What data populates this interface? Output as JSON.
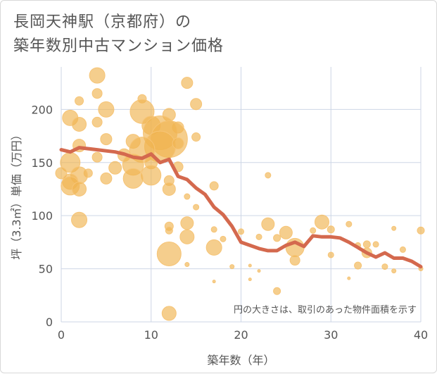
{
  "header": {
    "title_line1": "長岡天神駅（京都府）の",
    "title_line2": "築年数別中古マンション価格"
  },
  "colors": {
    "bubble_fill": "#f0b450",
    "bubble_stroke": "#f6c476",
    "trend_line": "#d4694e",
    "grid": "#cdd6e6"
  },
  "chart_data": {
    "type": "scatter",
    "xlabel": "築年数（年）",
    "ylabel": "坪（3.3㎡）単価（万円）",
    "xlim": [
      0,
      40
    ],
    "ylim": [
      0,
      240
    ],
    "x_ticks": [
      0,
      10,
      20,
      30,
      40
    ],
    "y_ticks": [
      0,
      50,
      100,
      150,
      200
    ],
    "grid": true,
    "note": "円の大きさは、取引のあった物件面積を示す",
    "bubbles": [
      {
        "x": 4,
        "y": 232,
        "s": 11
      },
      {
        "x": 14,
        "y": 225,
        "s": 8
      },
      {
        "x": 4,
        "y": 215,
        "s": 7
      },
      {
        "x": 2,
        "y": 208,
        "s": 6
      },
      {
        "x": 9,
        "y": 210,
        "s": 6
      },
      {
        "x": 15,
        "y": 205,
        "s": 8
      },
      {
        "x": 5,
        "y": 200,
        "s": 11
      },
      {
        "x": 9,
        "y": 198,
        "s": 17
      },
      {
        "x": 12,
        "y": 195,
        "s": 9
      },
      {
        "x": 1,
        "y": 192,
        "s": 11
      },
      {
        "x": 2,
        "y": 186,
        "s": 10
      },
      {
        "x": 4,
        "y": 188,
        "s": 7
      },
      {
        "x": 10,
        "y": 185,
        "s": 13
      },
      {
        "x": 13,
        "y": 183,
        "s": 8
      },
      {
        "x": 11,
        "y": 178,
        "s": 24
      },
      {
        "x": 12,
        "y": 172,
        "s": 26
      },
      {
        "x": 11,
        "y": 165,
        "s": 22
      },
      {
        "x": 8,
        "y": 170,
        "s": 10
      },
      {
        "x": 5,
        "y": 172,
        "s": 8
      },
      {
        "x": 13,
        "y": 168,
        "s": 8
      },
      {
        "x": 15,
        "y": 174,
        "s": 6
      },
      {
        "x": 2,
        "y": 166,
        "s": 9
      },
      {
        "x": 9,
        "y": 162,
        "s": 18
      },
      {
        "x": 7,
        "y": 157,
        "s": 9
      },
      {
        "x": 4,
        "y": 155,
        "s": 7
      },
      {
        "x": 1,
        "y": 150,
        "s": 14
      },
      {
        "x": 8,
        "y": 148,
        "s": 15
      },
      {
        "x": 10,
        "y": 150,
        "s": 9
      },
      {
        "x": 6,
        "y": 145,
        "s": 9
      },
      {
        "x": 13,
        "y": 146,
        "s": 7
      },
      {
        "x": 0,
        "y": 140,
        "s": 8
      },
      {
        "x": 3,
        "y": 140,
        "s": 6
      },
      {
        "x": 2,
        "y": 138,
        "s": 12
      },
      {
        "x": 10,
        "y": 138,
        "s": 14
      },
      {
        "x": 8,
        "y": 135,
        "s": 14
      },
      {
        "x": 5,
        "y": 135,
        "s": 8
      },
      {
        "x": 1,
        "y": 132,
        "s": 11
      },
      {
        "x": 12,
        "y": 133,
        "s": 7
      },
      {
        "x": 23,
        "y": 138,
        "s": 4
      },
      {
        "x": 1,
        "y": 128,
        "s": 13
      },
      {
        "x": 2,
        "y": 125,
        "s": 10
      },
      {
        "x": 12,
        "y": 125,
        "s": 9
      },
      {
        "x": 17,
        "y": 128,
        "s": 6
      },
      {
        "x": 14,
        "y": 118,
        "s": 4
      },
      {
        "x": 15,
        "y": 108,
        "s": 4
      },
      {
        "x": 2,
        "y": 96,
        "s": 11
      },
      {
        "x": 14,
        "y": 93,
        "s": 9
      },
      {
        "x": 12,
        "y": 90,
        "s": 6
      },
      {
        "x": 23,
        "y": 92,
        "s": 9
      },
      {
        "x": 29,
        "y": 94,
        "s": 10
      },
      {
        "x": 32,
        "y": 92,
        "s": 4
      },
      {
        "x": 12,
        "y": 86,
        "s": 5
      },
      {
        "x": 17,
        "y": 87,
        "s": 4
      },
      {
        "x": 20,
        "y": 85,
        "s": 4
      },
      {
        "x": 25,
        "y": 84,
        "s": 9
      },
      {
        "x": 28,
        "y": 86,
        "s": 4
      },
      {
        "x": 30,
        "y": 87,
        "s": 5
      },
      {
        "x": 37,
        "y": 88,
        "s": 3
      },
      {
        "x": 40,
        "y": 86,
        "s": 5
      },
      {
        "x": 14,
        "y": 80,
        "s": 10
      },
      {
        "x": 18,
        "y": 78,
        "s": 4
      },
      {
        "x": 24,
        "y": 79,
        "s": 5
      },
      {
        "x": 22,
        "y": 80,
        "s": 4
      },
      {
        "x": 33,
        "y": 72,
        "s": 4
      },
      {
        "x": 34,
        "y": 73,
        "s": 5
      },
      {
        "x": 35,
        "y": 73,
        "s": 4
      },
      {
        "x": 17,
        "y": 70,
        "s": 11
      },
      {
        "x": 26,
        "y": 70,
        "s": 13
      },
      {
        "x": 12,
        "y": 64,
        "s": 17
      },
      {
        "x": 30,
        "y": 63,
        "s": 4
      },
      {
        "x": 34,
        "y": 65,
        "s": 7
      },
      {
        "x": 38,
        "y": 68,
        "s": 4
      },
      {
        "x": 26,
        "y": 58,
        "s": 7
      },
      {
        "x": 33,
        "y": 53,
        "s": 5
      },
      {
        "x": 36,
        "y": 52,
        "s": 4
      },
      {
        "x": 14,
        "y": 54,
        "s": 3
      },
      {
        "x": 19,
        "y": 52,
        "s": 3
      },
      {
        "x": 21,
        "y": 53,
        "s": 2
      },
      {
        "x": 22,
        "y": 48,
        "s": 2
      },
      {
        "x": 37,
        "y": 48,
        "s": 3
      },
      {
        "x": 40,
        "y": 50,
        "s": 3
      },
      {
        "x": 17,
        "y": 38,
        "s": 2
      },
      {
        "x": 21,
        "y": 40,
        "s": 2
      },
      {
        "x": 32,
        "y": 41,
        "s": 2
      },
      {
        "x": 24,
        "y": 29,
        "s": 5
      },
      {
        "x": 12,
        "y": 8,
        "s": 10
      }
    ],
    "series": [
      {
        "x": [
          0,
          1,
          2,
          3,
          4,
          5,
          6,
          7,
          8,
          9,
          10,
          11,
          12,
          13,
          14,
          15,
          16,
          17,
          18,
          19,
          20,
          21,
          22,
          23,
          24,
          25,
          26,
          27,
          28,
          29,
          30,
          31,
          32,
          33,
          34,
          35,
          36,
          37,
          38,
          39,
          40
        ],
        "y": [
          162,
          160,
          164,
          163,
          162,
          161,
          160,
          158,
          155,
          154,
          158,
          150,
          153,
          137,
          134,
          126,
          120,
          108,
          101,
          90,
          75,
          72,
          69,
          67,
          67,
          72,
          75,
          71,
          81,
          80,
          80,
          79,
          75,
          70,
          65,
          61,
          65,
          60,
          60,
          57,
          52
        ]
      }
    ]
  }
}
